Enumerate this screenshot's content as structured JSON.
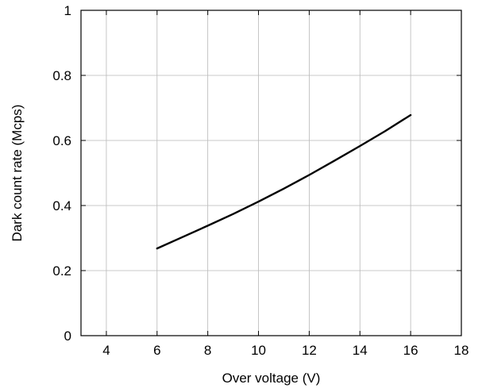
{
  "chart_data": {
    "type": "line",
    "title": "",
    "xlabel": "Over voltage (V)",
    "ylabel": "Dark count rate (Mcps)",
    "xlim": [
      3,
      18
    ],
    "ylim": [
      0,
      1
    ],
    "x_ticks": [
      4,
      6,
      8,
      10,
      12,
      14,
      16,
      18
    ],
    "y_ticks": [
      0,
      0.2,
      0.4,
      0.6,
      0.8,
      1
    ],
    "x_tick_labels": [
      "4",
      "6",
      "8",
      "10",
      "12",
      "14",
      "16",
      "18"
    ],
    "y_tick_labels": [
      "0",
      "0.2",
      "0.4",
      "0.6",
      "0.8",
      "1"
    ],
    "grid": true,
    "legend": "none",
    "series": [
      {
        "color": "#000000",
        "x": [
          6,
          7,
          8,
          9,
          10,
          11,
          12,
          13,
          14,
          15,
          16
        ],
        "y": [
          0.268,
          0.303,
          0.338,
          0.374,
          0.412,
          0.452,
          0.494,
          0.538,
          0.583,
          0.629,
          0.678
        ]
      }
    ]
  }
}
